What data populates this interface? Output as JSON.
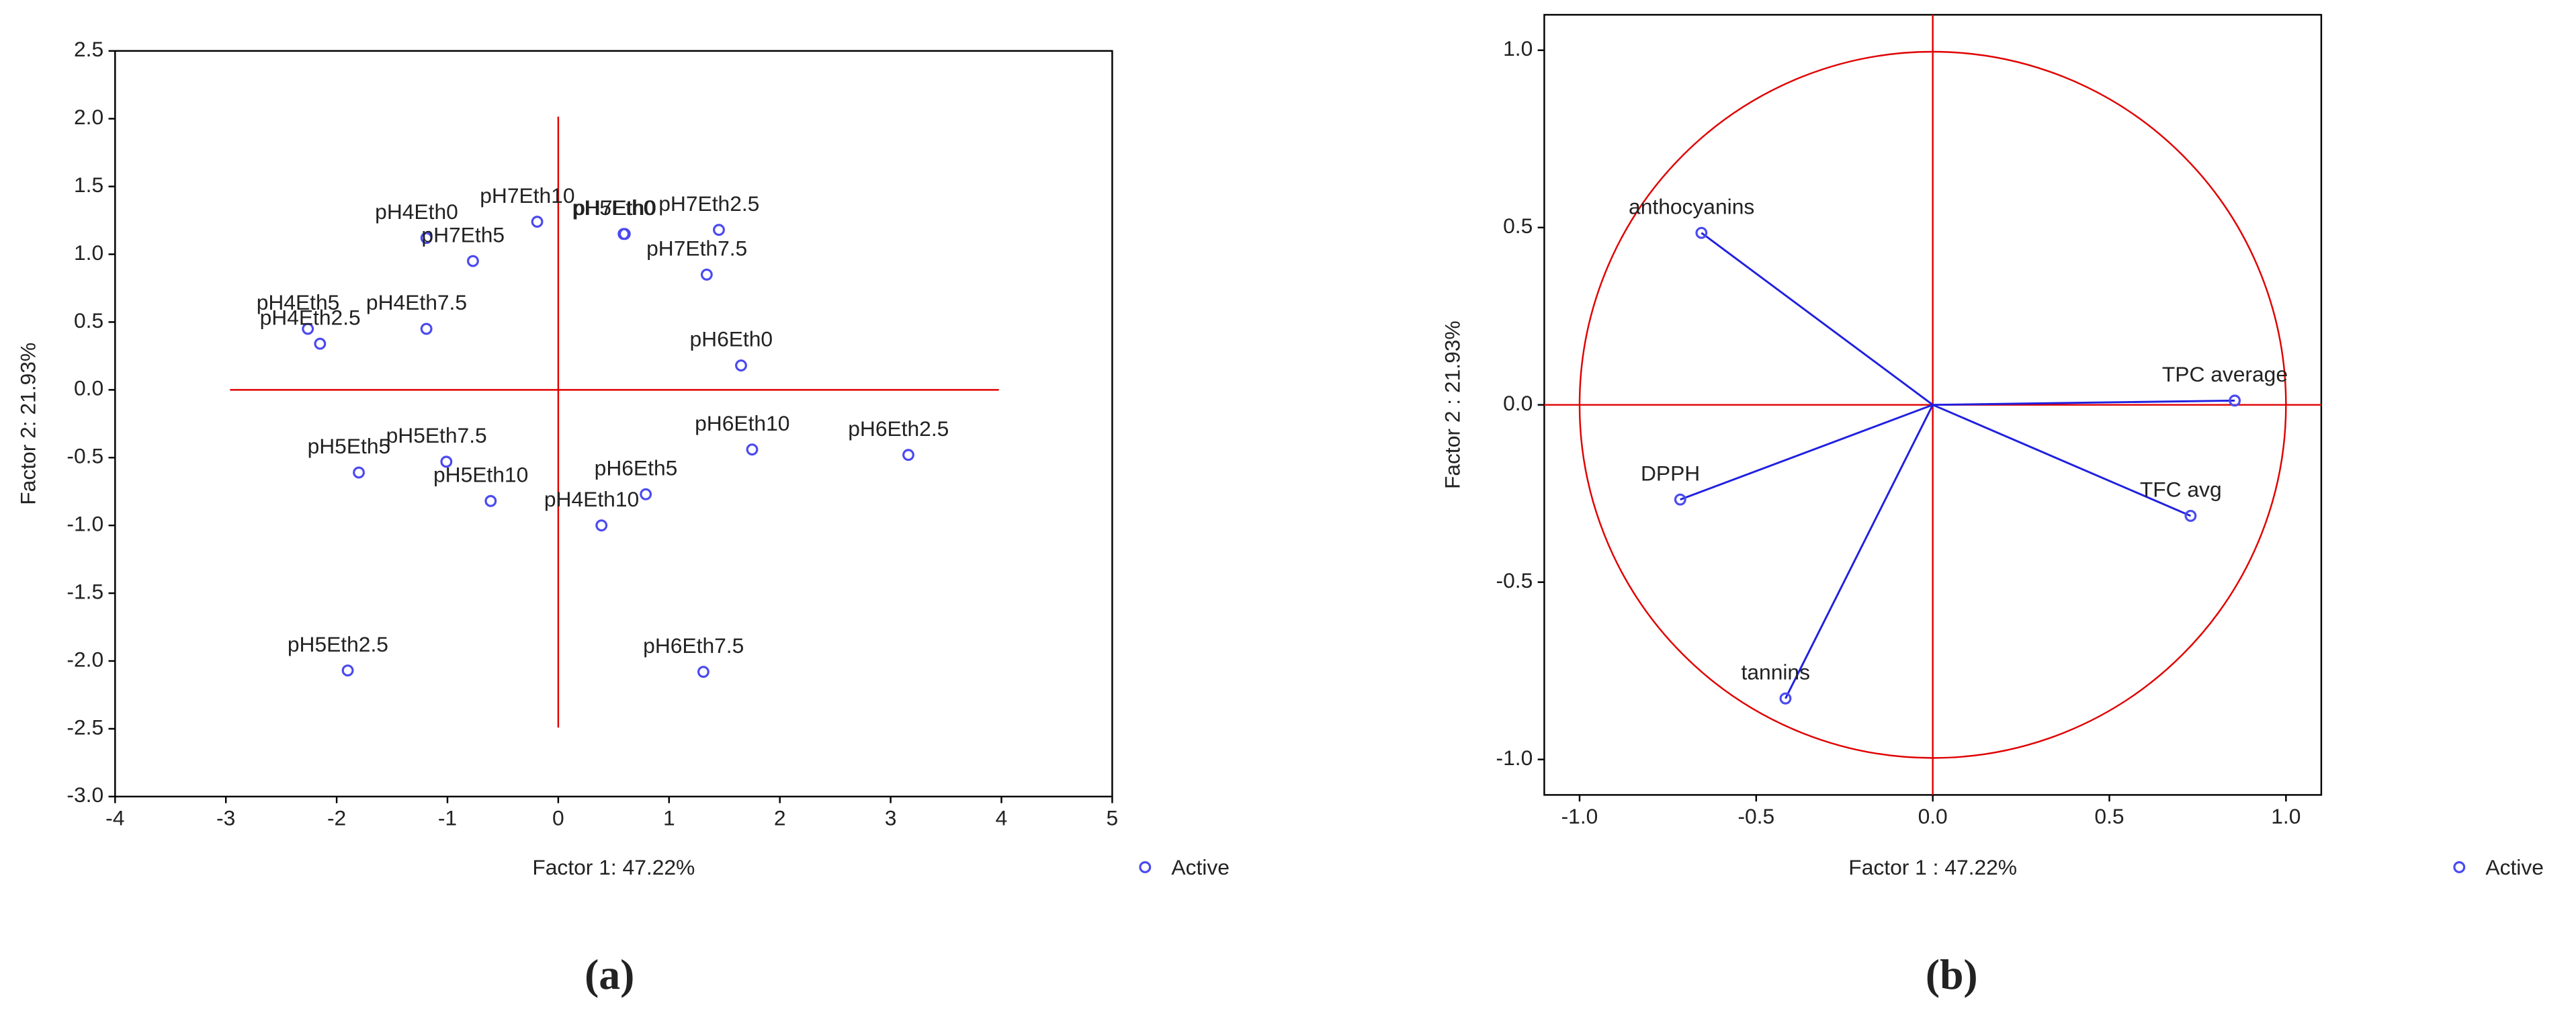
{
  "chart_data": [
    {
      "type": "scatter",
      "caption": "(a)",
      "x_label": "Factor 1: 47.22%",
      "y_label": "Factor 2: 21.93%",
      "xlim": [
        -4,
        5
      ],
      "xticks": [
        -4,
        -3,
        -2,
        -1,
        0,
        1,
        2,
        3,
        4,
        5
      ],
      "ylim": [
        -3,
        2.5
      ],
      "yticks": [
        {
          "value": -3,
          "label": "-3.0"
        },
        -2.5,
        {
          "value": -2,
          "label": "-2.0"
        },
        -1.5,
        {
          "value": -1,
          "label": "-1.0"
        },
        -0.5,
        {
          "value": 0,
          "label": "0.0"
        },
        0.5,
        {
          "value": 1,
          "label": "1.0"
        },
        1.5,
        {
          "value": 2,
          "label": "2.0"
        },
        2.5
      ],
      "vectors": false,
      "series": [
        {
          "name": "Active",
          "color": "#4a4af0",
          "labels": [
            "pH4Eth0",
            "pH7Eth10",
            "pH7Eth5",
            "pH5Eth0",
            "pH7Eth0",
            "pH7Eth2.5",
            "pH7Eth7.5",
            "pH4Eth5",
            "pH4Eth2.5",
            "pH4Eth7.5",
            "pH6Eth0",
            "pH5Eth5",
            "pH5Eth7.5",
            "pH5Eth10",
            "pH4Eth10",
            "pH6Eth5",
            "pH6Eth10",
            "pH6Eth2.5",
            "pH5Eth2.5",
            "pH6Eth7.5"
          ],
          "x": [
            -1.19,
            -0.19,
            -0.77,
            0.59,
            0.6,
            1.45,
            1.34,
            -2.26,
            -2.15,
            -1.19,
            1.65,
            -1.8,
            -1.01,
            -0.61,
            0.39,
            0.79,
            1.75,
            3.16,
            -1.9,
            1.31
          ],
          "values": [
            1.12,
            1.24,
            0.95,
            1.15,
            1.15,
            1.18,
            0.85,
            0.45,
            0.34,
            0.45,
            0.18,
            -0.61,
            -0.53,
            -0.82,
            -1.0,
            -0.77,
            -0.44,
            -0.48,
            -2.07,
            -2.08
          ]
        }
      ]
    },
    {
      "type": "scatter",
      "caption": "(b)",
      "x_label": "Factor 1 : 47.22%",
      "y_label": "Factor 2 : 21.93%",
      "xlim": [
        -1.1,
        1.1
      ],
      "xticks": [
        {
          "value": -1,
          "label": "-1.0"
        },
        -0.5,
        {
          "value": 0,
          "label": "0.0"
        },
        0.5,
        {
          "value": 1,
          "label": "1.0"
        }
      ],
      "ylim": [
        -1.1,
        1.1
      ],
      "yticks": [
        {
          "value": -1,
          "label": "-1.0"
        },
        -0.5,
        {
          "value": 0,
          "label": "0.0"
        },
        0.5,
        {
          "value": 1,
          "label": "1.0"
        }
      ],
      "vectors": true,
      "series": [
        {
          "name": "Active",
          "color": "#4a4af0",
          "labels": [
            "anthocyanins",
            "TPC average",
            "TFC avg",
            "DPPH",
            "tannins"
          ],
          "x": [
            -0.655,
            0.855,
            0.73,
            -0.715,
            -0.417
          ],
          "values": [
            0.485,
            0.012,
            -0.313,
            -0.267,
            -0.828
          ]
        }
      ]
    }
  ]
}
